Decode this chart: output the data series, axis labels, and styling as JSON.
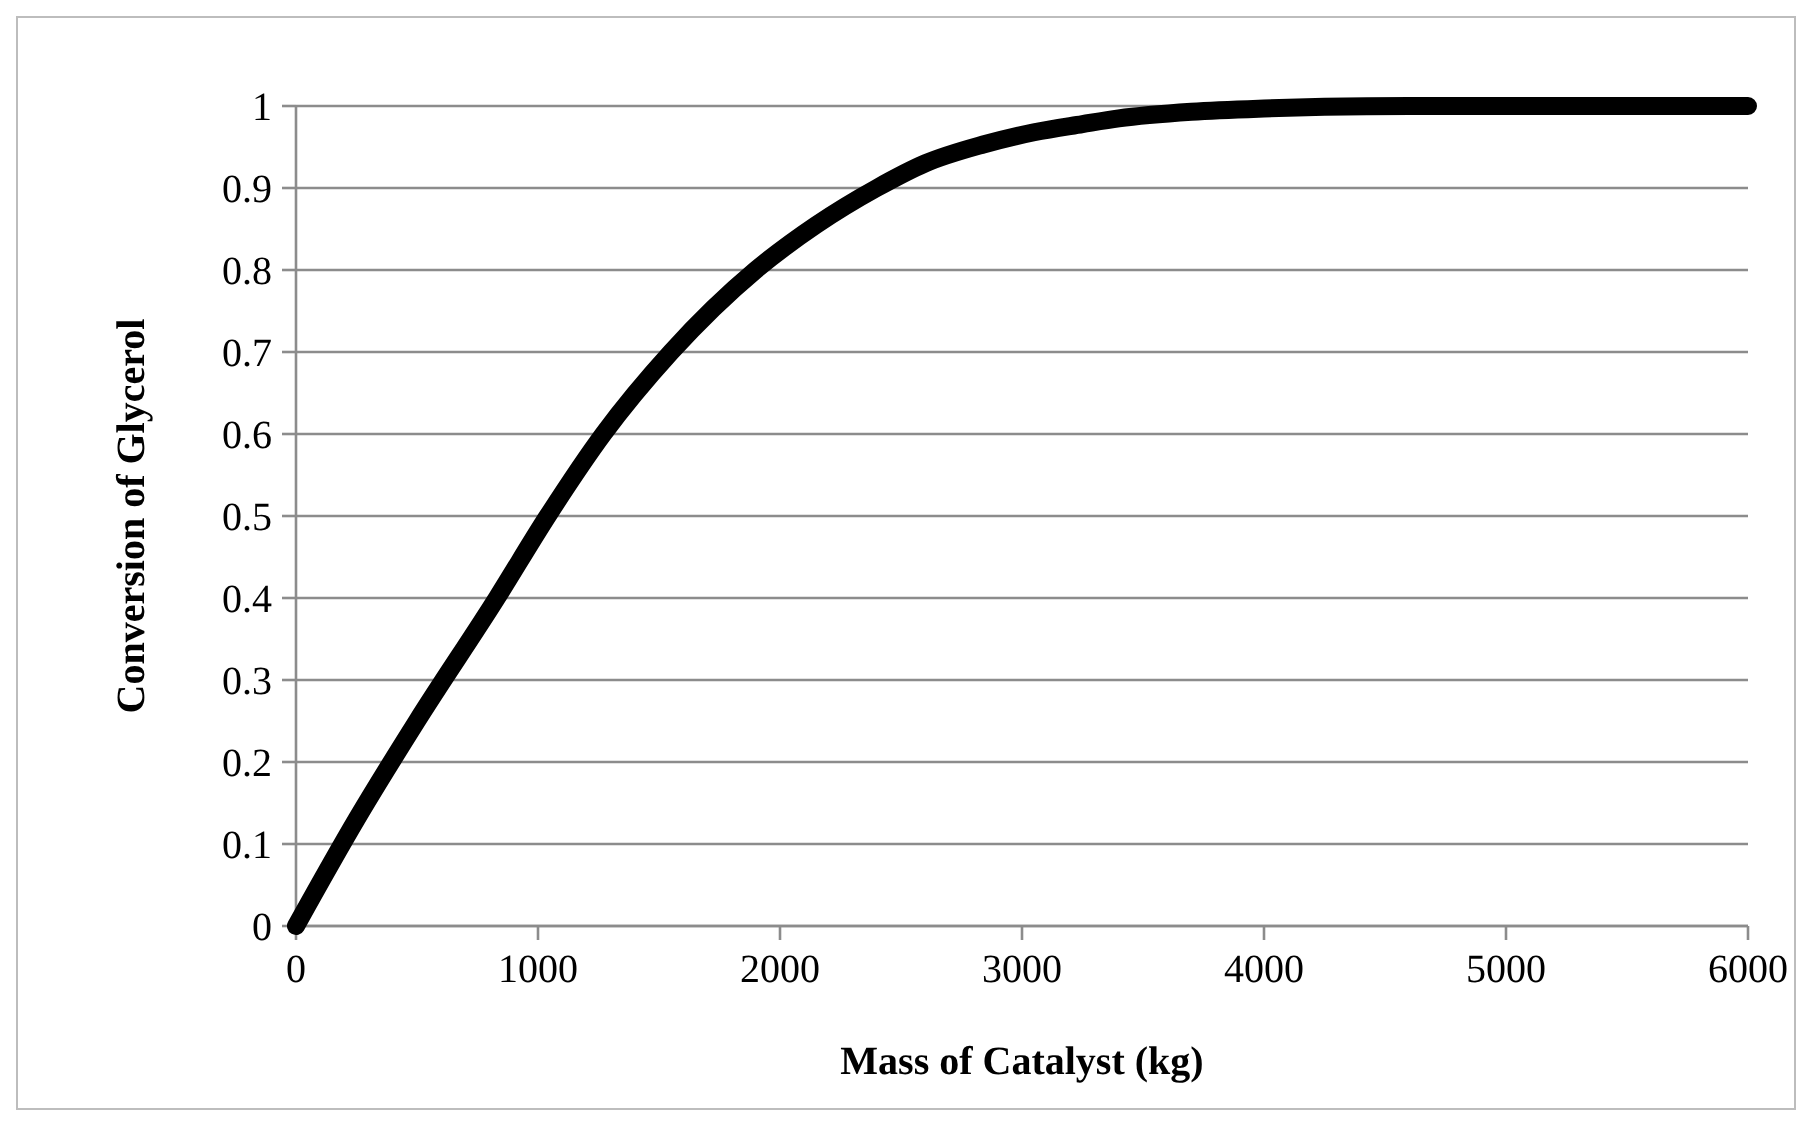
{
  "chart_data": {
    "type": "line",
    "xlabel": "Mass of Catalyst (kg)",
    "ylabel": "Conversion of Glycerol",
    "series": [
      {
        "color": "#000000",
        "x": [
          0,
          250,
          500,
          830,
          1040,
          1270,
          1550,
          1900,
          2150,
          2400,
          2600,
          2840,
          3050,
          3250,
          3400,
          3700,
          4000,
          4250,
          4600,
          5000,
          5500,
          6000
        ],
        "values": [
          0,
          0.13,
          0.25,
          0.4,
          0.5,
          0.6,
          0.7,
          0.8,
          0.855,
          0.9,
          0.93,
          0.953,
          0.968,
          0.978,
          0.985,
          0.993,
          0.997,
          0.999,
          1,
          1,
          1,
          1
        ]
      }
    ],
    "xlim": [
      0,
      6000
    ],
    "xticks": [
      0,
      1000,
      2000,
      3000,
      4000,
      5000,
      6000
    ],
    "ylim": [
      0,
      1
    ],
    "yticks": [
      0,
      0.1,
      0.2,
      0.3,
      0.4,
      0.5,
      0.6,
      0.7,
      0.8,
      0.9,
      1
    ],
    "grid": "y",
    "marker": "none",
    "line_style": "solid"
  }
}
